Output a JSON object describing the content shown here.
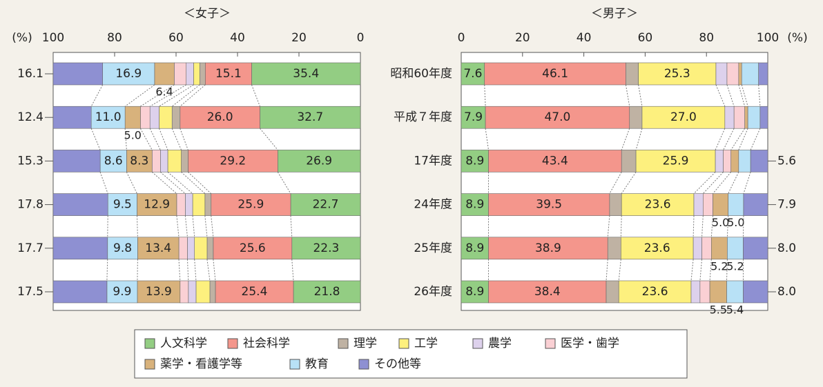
{
  "chart_data": {
    "type": "bar",
    "orientation": "horizontal",
    "stacked": true,
    "categories": [
      "昭和60年度",
      "平成７年度",
      "17年度",
      "24年度",
      "25年度",
      "26年度"
    ],
    "series": [
      {
        "name": "人文科学",
        "color": "#93cd83"
      },
      {
        "name": "社会科学",
        "color": "#f4968c"
      },
      {
        "name": "理学",
        "color": "#bfb2a3"
      },
      {
        "name": "工学",
        "color": "#fdf07e"
      },
      {
        "name": "農学",
        "color": "#ddd1ec"
      },
      {
        "name": "医学・歯学",
        "color": "#fad0d4"
      },
      {
        "name": "薬学・看護学等",
        "color": "#d8b27c"
      },
      {
        "name": "教育",
        "color": "#b8e1f6"
      },
      {
        "name": "その他等",
        "color": "#8e90d2"
      }
    ],
    "xlabel": "(%)",
    "panels": [
      {
        "title": "＜女子＞",
        "xlim": [
          100,
          0
        ],
        "xticks": [
          100,
          80,
          60,
          40,
          20,
          0
        ],
        "values": [
          [
            35.4,
            32.7,
            26.9,
            22.7,
            22.3,
            21.8
          ],
          [
            15.1,
            26.0,
            29.2,
            25.9,
            25.6,
            25.4
          ],
          [
            1.8,
            2.6,
            2.2,
            2.0,
            2.0,
            1.8
          ],
          [
            2.0,
            4.2,
            4.4,
            4.0,
            4.1,
            4.5
          ],
          [
            2.4,
            3.0,
            2.4,
            2.4,
            2.3,
            2.5
          ],
          [
            3.9,
            3.1,
            2.7,
            2.8,
            2.8,
            2.7
          ],
          [
            6.4,
            5.0,
            8.3,
            12.9,
            13.4,
            13.9
          ],
          [
            16.9,
            11.0,
            8.6,
            9.5,
            9.8,
            9.9
          ],
          [
            16.1,
            12.4,
            15.3,
            17.8,
            17.7,
            17.5
          ]
        ],
        "value_labels": [
          [
            "35.4",
            "32.7",
            "26.9",
            "22.7",
            "22.3",
            "21.8"
          ],
          [
            "15.1",
            "26.0",
            "29.2",
            "25.9",
            "25.6",
            "25.4"
          ],
          [
            null,
            null,
            null,
            null,
            null,
            null
          ],
          [
            null,
            null,
            null,
            null,
            null,
            null
          ],
          [
            null,
            null,
            null,
            null,
            null,
            null
          ],
          [
            null,
            null,
            null,
            null,
            null,
            null
          ],
          [
            "6.4",
            "5.0",
            "8.3",
            "12.9",
            "13.4",
            "13.9"
          ],
          [
            "16.9",
            "11.0",
            "8.6",
            "9.5",
            "9.8",
            "9.9"
          ],
          [
            "16.1",
            "12.4",
            "15.3",
            "17.8",
            "17.7",
            "17.5"
          ]
        ]
      },
      {
        "title": "＜男子＞",
        "xlim": [
          0,
          100
        ],
        "xticks": [
          0,
          20,
          40,
          60,
          80,
          100
        ],
        "values": [
          [
            7.6,
            7.9,
            8.9,
            8.9,
            8.9,
            8.9
          ],
          [
            46.1,
            47.0,
            43.4,
            39.5,
            38.9,
            38.4
          ],
          [
            4.1,
            4.1,
            4.7,
            3.9,
            4.3,
            4.1
          ],
          [
            25.3,
            27.0,
            25.9,
            23.6,
            23.6,
            23.6
          ],
          [
            3.6,
            3.0,
            2.6,
            3.0,
            2.8,
            2.9
          ],
          [
            3.8,
            3.5,
            2.5,
            3.2,
            3.1,
            3.2
          ],
          [
            1.0,
            1.0,
            2.5,
            5.0,
            5.2,
            5.5
          ],
          [
            5.5,
            4.0,
            3.9,
            5.0,
            5.2,
            5.4
          ],
          [
            3.0,
            2.5,
            5.6,
            7.9,
            8.0,
            8.0
          ]
        ],
        "value_labels": [
          [
            "7.6",
            "7.9",
            "8.9",
            "8.9",
            "8.9",
            "8.9"
          ],
          [
            "46.1",
            "47.0",
            "43.4",
            "39.5",
            "38.9",
            "38.4"
          ],
          [
            null,
            null,
            null,
            null,
            null,
            null
          ],
          [
            "25.3",
            "27.0",
            "25.9",
            "23.6",
            "23.6",
            "23.6"
          ],
          [
            null,
            null,
            null,
            null,
            null,
            null
          ],
          [
            null,
            null,
            null,
            null,
            null,
            null
          ],
          [
            null,
            null,
            null,
            "5.0",
            "5.2",
            "5.5"
          ],
          [
            null,
            null,
            null,
            "5.0",
            "5.2",
            "5.4"
          ],
          [
            null,
            null,
            "5.6",
            "7.9",
            "8.0",
            "8.0"
          ]
        ]
      }
    ]
  }
}
